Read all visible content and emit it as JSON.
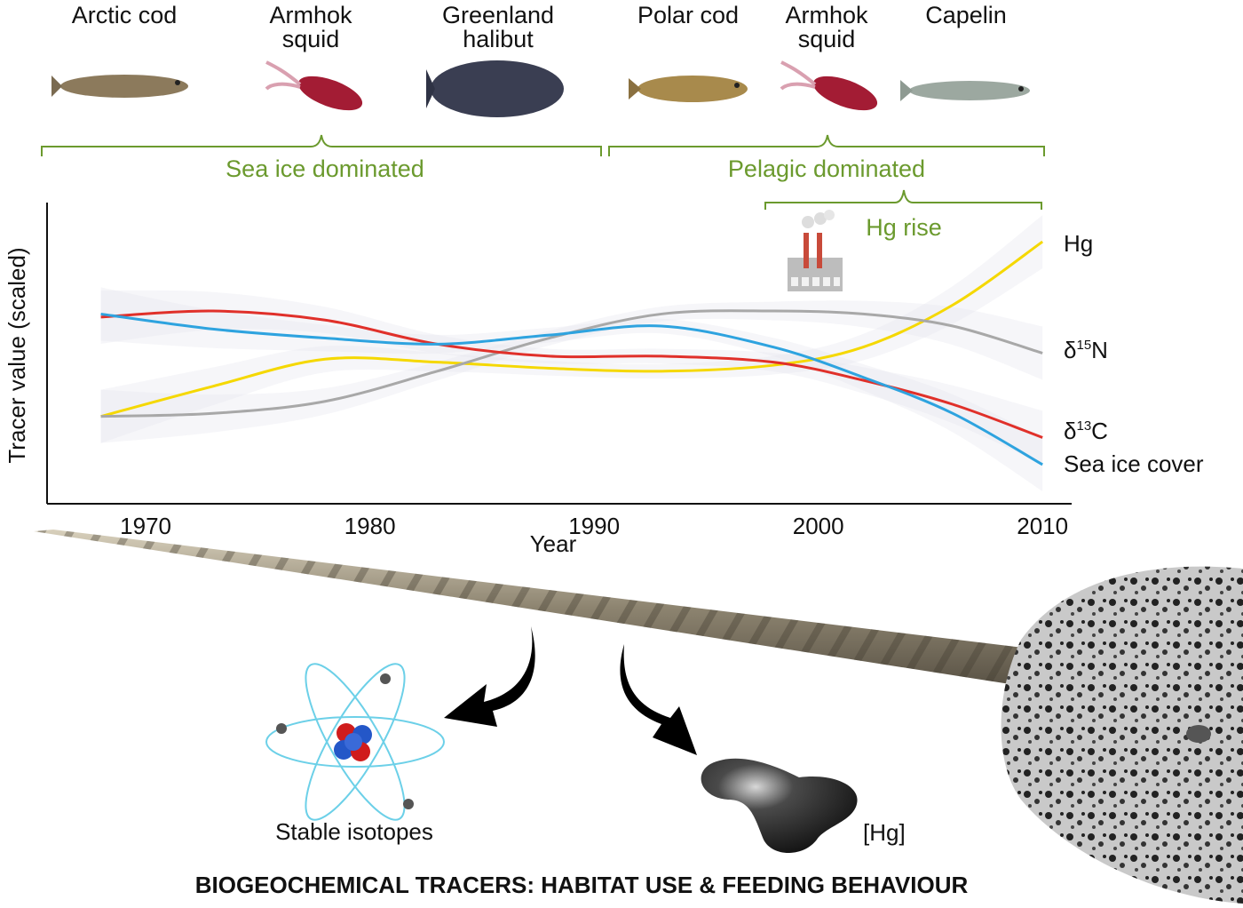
{
  "species": [
    {
      "name_lines": [
        "Arctic cod"
      ]
    },
    {
      "name_lines": [
        "Armhok",
        "squid"
      ]
    },
    {
      "name_lines": [
        "Greenland",
        "halibut"
      ]
    },
    {
      "name_lines": [
        "Polar cod"
      ]
    },
    {
      "name_lines": [
        "Armhok",
        "squid"
      ]
    },
    {
      "name_lines": [
        "Capelin"
      ]
    }
  ],
  "groups": {
    "sea_ice": "Sea ice dominated",
    "pelagic": "Pelagic dominated",
    "hg_rise": "Hg rise"
  },
  "colors": {
    "bracket": "#6b9a2e",
    "hg": "#f5d800",
    "d15n": "#a8a8a8",
    "d13c": "#e0302a",
    "sea_ice": "#2ea3df"
  },
  "icons": [
    "factory-icon",
    "atom-icon",
    "mercury-drop-icon",
    "narwhal-tusk",
    "narwhal-head",
    "fish-icon",
    "squid-icon"
  ],
  "bottom": {
    "isotopes": "Stable isotopes",
    "hg": "[Hg]",
    "title": "BIOGEOCHEMICAL TRACERS: HABITAT USE & FEEDING BEHAVIOUR"
  },
  "chart_data": {
    "type": "line",
    "xlabel": "Year",
    "ylabel": "Tracer value (scaled)",
    "xlim": [
      1965.6,
      2011.3
    ],
    "ylim": [
      0,
      1
    ],
    "xticks": [
      "1970",
      "1980",
      "1990",
      "2000",
      "2010"
    ],
    "x": [
      1968,
      1973,
      1978,
      1983,
      1988,
      1993,
      1998,
      2002,
      2006,
      2010
    ],
    "series": [
      {
        "name": "Hg",
        "key": "hg",
        "values": [
          0.29,
          0.39,
          0.48,
          0.47,
          0.45,
          0.44,
          0.46,
          0.52,
          0.66,
          0.87
        ]
      },
      {
        "name": "δ15N",
        "name_base": "δ",
        "name_sup": "15",
        "name_tail": "N",
        "key": "d15n",
        "values": [
          0.29,
          0.3,
          0.34,
          0.44,
          0.55,
          0.63,
          0.64,
          0.63,
          0.59,
          0.5
        ]
      },
      {
        "name": "δ13C",
        "name_base": "δ",
        "name_sup": "13",
        "name_tail": "C",
        "key": "d13c",
        "values": [
          0.62,
          0.64,
          0.61,
          0.53,
          0.49,
          0.49,
          0.47,
          0.41,
          0.33,
          0.22
        ]
      },
      {
        "name": "Sea ice cover",
        "key": "sea_ice",
        "values": [
          0.63,
          0.58,
          0.55,
          0.53,
          0.56,
          0.59,
          0.52,
          0.42,
          0.3,
          0.13
        ]
      }
    ],
    "confidence_band": true,
    "grid": false,
    "legend": "right (direct labels)"
  }
}
